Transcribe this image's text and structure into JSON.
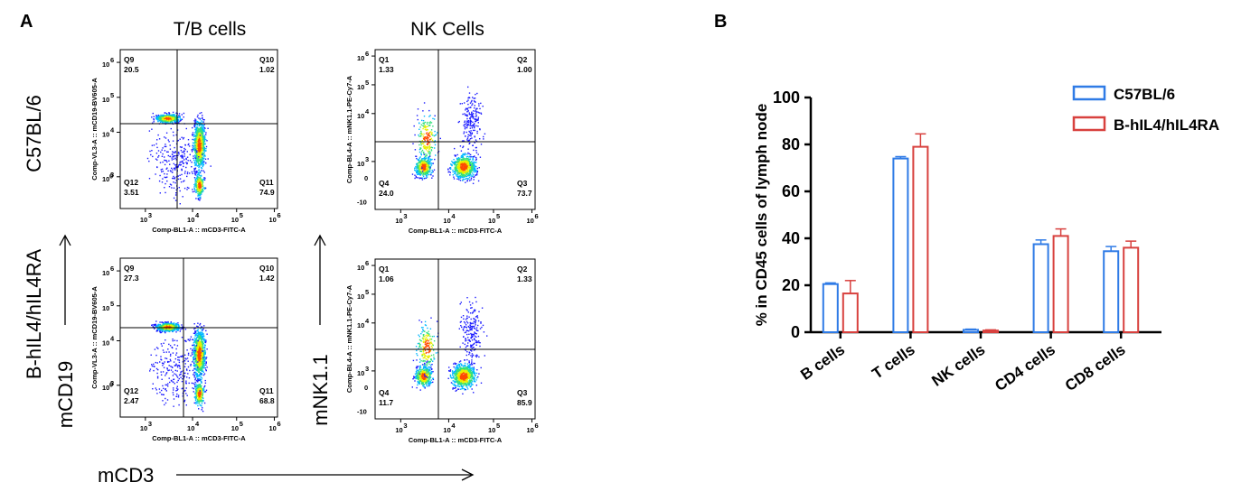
{
  "panel_a": {
    "letter": "A",
    "col_titles": [
      "T/B cells",
      "NK Cells"
    ],
    "row_labels": [
      "C57BL/6",
      "B-hIL4/hIL4RA"
    ],
    "axis_mcd19": "mCD19",
    "axis_mnk11": "mNK1.1",
    "axis_mcd3": "mCD3",
    "tb_xlabel": "Comp-BL1-A :: mCD3-FITC-A",
    "tb_ylabel": "Comp-VL3-A :: mCD19-BV605-A",
    "nk_xlabel": "Comp-BL1-A :: mCD3-FITC-A",
    "nk_ylabel": "Comp-BL4-A :: mNK1.1-PE-Cy7-A",
    "tick_exponents": [
      "3",
      "4",
      "5",
      "6"
    ],
    "tick_zero": "0",
    "tick_neg": "-10",
    "tick_base": "10",
    "plots": [
      {
        "name": "c57-tb",
        "quadrants": [
          {
            "label": "Q9",
            "value": "20.5"
          },
          {
            "label": "Q10",
            "value": "1.02"
          },
          {
            "label": "Q12",
            "value": "3.51"
          },
          {
            "label": "Q11",
            "value": "74.9"
          }
        ]
      },
      {
        "name": "c57-nk",
        "quadrants": [
          {
            "label": "Q1",
            "value": "1.33"
          },
          {
            "label": "Q2",
            "value": "1.00"
          },
          {
            "label": "Q4",
            "value": "24.0"
          },
          {
            "label": "Q3",
            "value": "73.7"
          }
        ]
      },
      {
        "name": "hil4-tb",
        "quadrants": [
          {
            "label": "Q9",
            "value": "27.3"
          },
          {
            "label": "Q10",
            "value": "1.42"
          },
          {
            "label": "Q12",
            "value": "2.47"
          },
          {
            "label": "Q11",
            "value": "68.8"
          }
        ]
      },
      {
        "name": "hil4-nk",
        "quadrants": [
          {
            "label": "Q1",
            "value": "1.06"
          },
          {
            "label": "Q2",
            "value": "1.33"
          },
          {
            "label": "Q4",
            "value": "11.7"
          },
          {
            "label": "Q3",
            "value": "85.9"
          }
        ]
      }
    ]
  },
  "panel_b": {
    "letter": "B"
  },
  "colors": {
    "c57": "#2f7be6",
    "hil4": "#d8413e"
  },
  "chart_data": {
    "type": "bar",
    "categories": [
      "B cells",
      "T cells",
      "NK cells",
      "CD4 cells",
      "CD8 cells"
    ],
    "series": [
      {
        "name": "C57BL/6",
        "values": [
          20.5,
          74.0,
          1.0,
          37.5,
          34.5
        ],
        "errors": [
          0.5,
          0.8,
          0.3,
          1.8,
          2.0
        ]
      },
      {
        "name": "B-hIL4/hIL4RA",
        "values": [
          16.5,
          79.0,
          0.7,
          41.0,
          36.0
        ],
        "errors": [
          5.5,
          5.5,
          0.3,
          3.0,
          2.8
        ]
      }
    ],
    "ylabel": "% in CD45 cells of lymph node",
    "ylim": [
      0,
      100
    ],
    "yticks": [
      0,
      20,
      40,
      60,
      80,
      100
    ],
    "legend_position": "top-right",
    "grid": false
  }
}
